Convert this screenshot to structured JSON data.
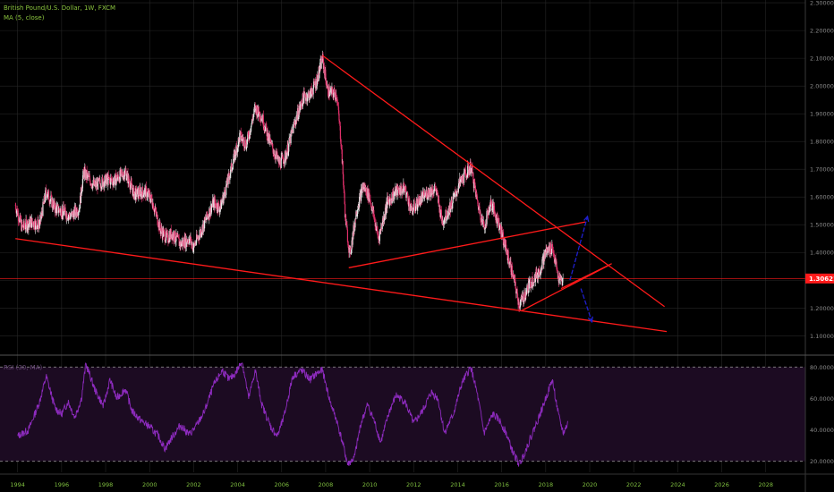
{
  "header": {
    "symbol_line": "British Pound/U.S. Dollar, 1W, FXCM",
    "ma_line": "MA (5, close)"
  },
  "rsi_panel": {
    "label": "RSI (30, MA)",
    "ticks": [
      "80.0000",
      "60.0000",
      "40.0000",
      "20.0000"
    ],
    "tick_values": [
      80,
      60,
      40,
      20
    ],
    "upper_band": 80,
    "lower_band": 20,
    "fill_color": "#1c0b22",
    "line_color": "#8e2bbf",
    "band_color": "#888888"
  },
  "price_tag": {
    "value": "1.30621",
    "color": "#ff1a1a"
  },
  "colors": {
    "up_candle": "#e8e8e8",
    "down_candle": "#e0306a",
    "trendline": "#ff1a1a",
    "arrow": "#1f1fcf",
    "grid": "#262626"
  },
  "chart_data": [
    {
      "type": "candlestick",
      "title": "British Pound/U.S. Dollar, 1W, FXCM",
      "x_ticks": [
        "1994",
        "1996",
        "1998",
        "2000",
        "2002",
        "2004",
        "2006",
        "2008",
        "2010",
        "2012",
        "2014",
        "2016",
        "2018",
        "2020",
        "2022",
        "2024",
        "2026",
        "2028"
      ],
      "x_tick_values": [
        1994,
        1996,
        1998,
        2000,
        2002,
        2004,
        2006,
        2008,
        2010,
        2012,
        2014,
        2016,
        2018,
        2020,
        2022,
        2024,
        2026,
        2028
      ],
      "xlim": [
        1993.2,
        2029.8
      ],
      "y_ticks": [
        "2.30000",
        "2.20000",
        "2.10000",
        "2.00000",
        "1.90000",
        "1.80000",
        "1.70000",
        "1.60000",
        "1.50000",
        "1.40000",
        "1.30000",
        "1.20000",
        "1.10000"
      ],
      "y_tick_values": [
        2.3,
        2.2,
        2.1,
        2.0,
        1.9,
        1.8,
        1.7,
        1.6,
        1.5,
        1.4,
        1.3,
        1.2,
        1.1
      ],
      "ylim": [
        1.03,
        2.31
      ],
      "price_path": [
        [
          1993.9,
          1.57
        ],
        [
          1994.2,
          1.49
        ],
        [
          1994.6,
          1.51
        ],
        [
          1995.0,
          1.5
        ],
        [
          1995.3,
          1.62
        ],
        [
          1995.7,
          1.56
        ],
        [
          1996.0,
          1.55
        ],
        [
          1996.4,
          1.53
        ],
        [
          1996.8,
          1.56
        ],
        [
          1997.0,
          1.69
        ],
        [
          1997.5,
          1.64
        ],
        [
          1998.0,
          1.66
        ],
        [
          1998.4,
          1.66
        ],
        [
          1998.9,
          1.69
        ],
        [
          1999.3,
          1.61
        ],
        [
          1999.8,
          1.62
        ],
        [
          2000.1,
          1.59
        ],
        [
          2000.5,
          1.48
        ],
        [
          2000.8,
          1.45
        ],
        [
          2001.0,
          1.47
        ],
        [
          2001.4,
          1.43
        ],
        [
          2001.8,
          1.45
        ],
        [
          2002.0,
          1.42
        ],
        [
          2002.4,
          1.49
        ],
        [
          2002.9,
          1.58
        ],
        [
          2003.2,
          1.56
        ],
        [
          2003.5,
          1.64
        ],
        [
          2003.8,
          1.73
        ],
        [
          2004.1,
          1.82
        ],
        [
          2004.4,
          1.79
        ],
        [
          2004.8,
          1.92
        ],
        [
          2005.1,
          1.89
        ],
        [
          2005.5,
          1.79
        ],
        [
          2005.9,
          1.72
        ],
        [
          2006.2,
          1.75
        ],
        [
          2006.6,
          1.87
        ],
        [
          2007.0,
          1.96
        ],
        [
          2007.3,
          1.97
        ],
        [
          2007.6,
          2.02
        ],
        [
          2007.85,
          2.1
        ],
        [
          2008.1,
          1.98
        ],
        [
          2008.5,
          1.97
        ],
        [
          2008.7,
          1.8
        ],
        [
          2008.9,
          1.52
        ],
        [
          2009.1,
          1.39
        ],
        [
          2009.4,
          1.55
        ],
        [
          2009.7,
          1.64
        ],
        [
          2010.0,
          1.6
        ],
        [
          2010.4,
          1.45
        ],
        [
          2010.8,
          1.58
        ],
        [
          2011.2,
          1.62
        ],
        [
          2011.6,
          1.63
        ],
        [
          2011.9,
          1.55
        ],
        [
          2012.3,
          1.59
        ],
        [
          2012.7,
          1.62
        ],
        [
          2013.0,
          1.63
        ],
        [
          2013.3,
          1.51
        ],
        [
          2013.7,
          1.57
        ],
        [
          2014.1,
          1.65
        ],
        [
          2014.6,
          1.71
        ],
        [
          2014.9,
          1.58
        ],
        [
          2015.2,
          1.49
        ],
        [
          2015.5,
          1.58
        ],
        [
          2015.9,
          1.5
        ],
        [
          2016.2,
          1.41
        ],
        [
          2016.5,
          1.32
        ],
        [
          2016.8,
          1.21
        ],
        [
          2017.0,
          1.24
        ],
        [
          2017.3,
          1.29
        ],
        [
          2017.7,
          1.33
        ],
        [
          2018.0,
          1.4
        ],
        [
          2018.3,
          1.42
        ],
        [
          2018.6,
          1.3
        ],
        [
          2018.8,
          1.3
        ]
      ],
      "last_price": 1.30621,
      "trendlines": [
        {
          "from": [
            1993.9,
            1.45
          ],
          "to": [
            2023.5,
            1.115
          ]
        },
        {
          "from": [
            2007.85,
            2.11
          ],
          "to": [
            2023.4,
            1.205
          ]
        },
        {
          "from": [
            2009.05,
            1.345
          ],
          "to": [
            2019.8,
            1.51
          ]
        },
        {
          "from": [
            2016.9,
            1.19
          ],
          "to": [
            2020.9,
            1.355
          ]
        },
        {
          "from": [
            2018.7,
            1.27
          ],
          "to": [
            2021.0,
            1.36
          ]
        }
      ],
      "arrows": [
        {
          "from": [
            2019.1,
            1.3
          ],
          "to": [
            2019.9,
            1.53
          ]
        },
        {
          "from": [
            2019.6,
            1.27
          ],
          "to": [
            2020.1,
            1.15
          ]
        }
      ]
    },
    {
      "type": "line",
      "title": "RSI (30, MA)",
      "ylim": [
        13,
        87
      ],
      "y_ticks": [
        "80.0000",
        "60.0000",
        "40.0000",
        "20.0000"
      ],
      "y_tick_values": [
        80,
        60,
        40,
        20
      ],
      "bands": [
        80,
        20
      ],
      "path": [
        [
          1994.0,
          36
        ],
        [
          1994.5,
          40
        ],
        [
          1995.0,
          58
        ],
        [
          1995.3,
          74
        ],
        [
          1995.7,
          54
        ],
        [
          1996.0,
          50
        ],
        [
          1996.3,
          58
        ],
        [
          1996.6,
          48
        ],
        [
          1996.9,
          60
        ],
        [
          1997.1,
          82
        ],
        [
          1997.5,
          66
        ],
        [
          1997.9,
          55
        ],
        [
          1998.2,
          72
        ],
        [
          1998.5,
          60
        ],
        [
          1998.9,
          66
        ],
        [
          1999.2,
          52
        ],
        [
          1999.6,
          46
        ],
        [
          2000.0,
          42
        ],
        [
          2000.4,
          36
        ],
        [
          2000.7,
          28
        ],
        [
          2001.0,
          35
        ],
        [
          2001.4,
          43
        ],
        [
          2001.8,
          37
        ],
        [
          2002.1,
          42
        ],
        [
          2002.5,
          52
        ],
        [
          2002.9,
          68
        ],
        [
          2003.3,
          78
        ],
        [
          2003.6,
          72
        ],
        [
          2003.9,
          76
        ],
        [
          2004.2,
          84
        ],
        [
          2004.5,
          60
        ],
        [
          2004.8,
          78
        ],
        [
          2005.1,
          56
        ],
        [
          2005.5,
          42
        ],
        [
          2005.8,
          36
        ],
        [
          2006.1,
          48
        ],
        [
          2006.5,
          74
        ],
        [
          2006.9,
          78
        ],
        [
          2007.3,
          72
        ],
        [
          2007.6,
          76
        ],
        [
          2007.85,
          78
        ],
        [
          2008.2,
          58
        ],
        [
          2008.5,
          46
        ],
        [
          2008.8,
          30
        ],
        [
          2009.0,
          18
        ],
        [
          2009.3,
          22
        ],
        [
          2009.6,
          44
        ],
        [
          2009.9,
          56
        ],
        [
          2010.2,
          46
        ],
        [
          2010.5,
          32
        ],
        [
          2010.9,
          52
        ],
        [
          2011.2,
          62
        ],
        [
          2011.6,
          58
        ],
        [
          2012.0,
          44
        ],
        [
          2012.4,
          52
        ],
        [
          2012.8,
          64
        ],
        [
          2013.1,
          60
        ],
        [
          2013.4,
          38
        ],
        [
          2013.8,
          50
        ],
        [
          2014.2,
          70
        ],
        [
          2014.6,
          80
        ],
        [
          2014.9,
          62
        ],
        [
          2015.2,
          38
        ],
        [
          2015.6,
          50
        ],
        [
          2015.9,
          46
        ],
        [
          2016.2,
          38
        ],
        [
          2016.5,
          26
        ],
        [
          2016.8,
          18
        ],
        [
          2017.0,
          24
        ],
        [
          2017.4,
          38
        ],
        [
          2017.8,
          52
        ],
        [
          2018.1,
          64
        ],
        [
          2018.3,
          72
        ],
        [
          2018.6,
          48
        ],
        [
          2018.8,
          38
        ],
        [
          2019.0,
          44
        ]
      ]
    }
  ]
}
